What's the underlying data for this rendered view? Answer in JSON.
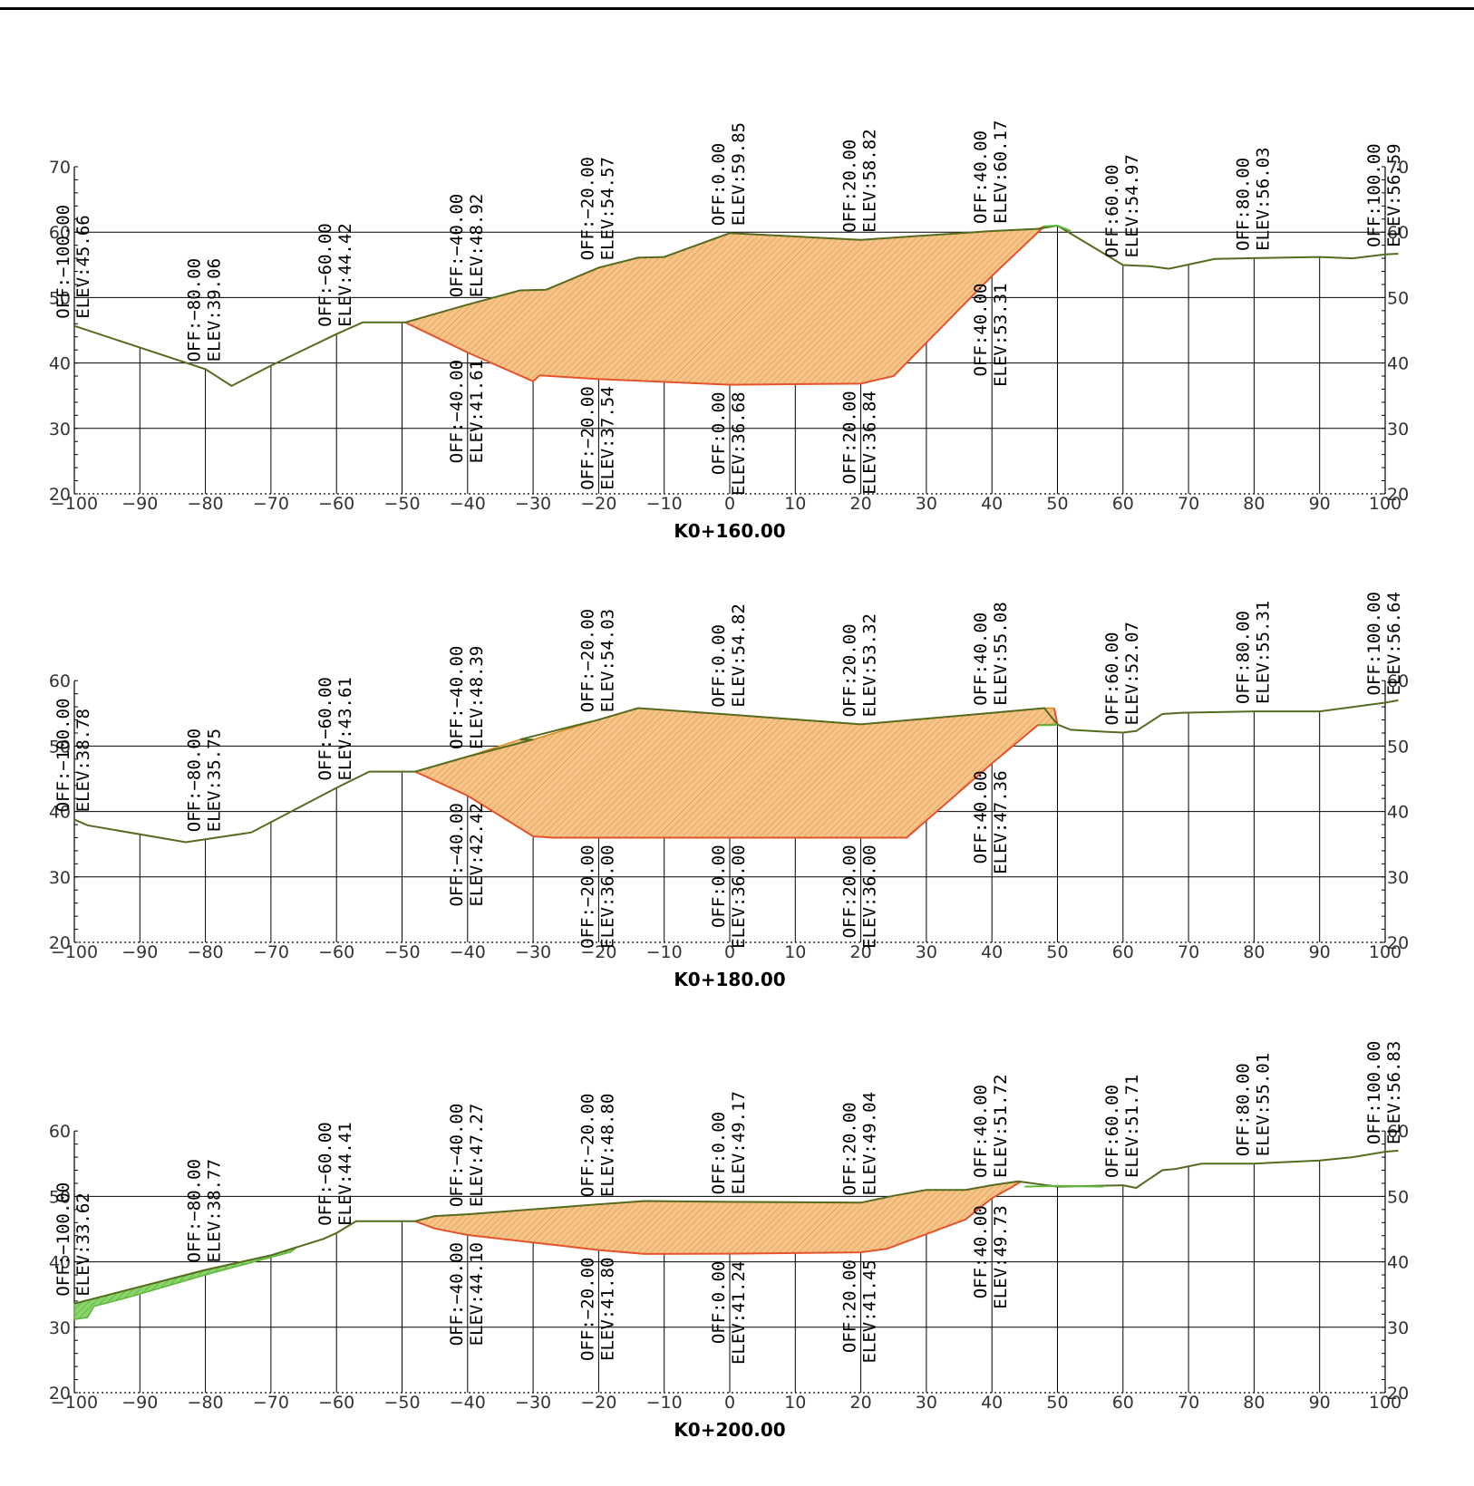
{
  "drawing": {
    "x_ticks": [
      -100,
      -90,
      -80,
      -70,
      -60,
      -50,
      -40,
      -30,
      -20,
      -10,
      0,
      10,
      20,
      30,
      40,
      50,
      60,
      70,
      80,
      90,
      100
    ],
    "colors": {
      "ground_line": "#556b1f",
      "cut_fill": "#f5c48a",
      "cut_hatch": "#e08a2a",
      "cut_outline_top": "#d98a1a",
      "cut_outline_bottom": "#e5532a",
      "fill_area": "#8ad46a",
      "fill_hatch": "#3aa532",
      "design_edge": "#5cb83a",
      "grid": "#000000"
    }
  },
  "sections": [
    {
      "station": "K0+160.00",
      "y_ticks": [
        20,
        30,
        40,
        50,
        60,
        70
      ],
      "ground": [
        [
          -100,
          45.66
        ],
        [
          -80,
          39.06
        ],
        [
          -76,
          36.5
        ],
        [
          -70,
          39.6
        ],
        [
          -60,
          44.42
        ],
        [
          -56,
          46.2
        ],
        [
          -49.5,
          46.2
        ],
        [
          -40,
          48.92
        ],
        [
          -32,
          51.1
        ],
        [
          -28,
          51.2
        ],
        [
          -20,
          54.57
        ],
        [
          -14,
          56.1
        ],
        [
          -10,
          56.2
        ],
        [
          0,
          59.85
        ],
        [
          20,
          58.82
        ],
        [
          40,
          60.17
        ],
        [
          47,
          60.5
        ],
        [
          50,
          61
        ],
        [
          60,
          54.97
        ],
        [
          64,
          54.8
        ],
        [
          67,
          54.4
        ],
        [
          74,
          55.9
        ],
        [
          80,
          56.03
        ],
        [
          90,
          56.2
        ],
        [
          95,
          56
        ],
        [
          100,
          56.59
        ],
        [
          102,
          56.7
        ]
      ],
      "design": [
        [
          -49.5,
          46.2
        ],
        [
          -40,
          41.61
        ],
        [
          -28,
          38.4
        ],
        [
          -28.5,
          38.0
        ],
        [
          -30,
          37.2
        ],
        [
          -20,
          37.54
        ],
        [
          0,
          36.68
        ],
        [
          20,
          36.84
        ],
        [
          25,
          38.0
        ],
        [
          40,
          53.31
        ],
        [
          48,
          60.9
        ],
        [
          50,
          61
        ],
        [
          52,
          60.2
        ]
      ],
      "cut_top": [
        [
          -49.5,
          46.2
        ],
        [
          -40,
          48.92
        ],
        [
          -32,
          51.1
        ],
        [
          -28,
          51.2
        ],
        [
          -20,
          54.57
        ],
        [
          -14,
          56.1
        ],
        [
          -10,
          56.2
        ],
        [
          0,
          59.85
        ],
        [
          20,
          58.82
        ],
        [
          40,
          60.17
        ],
        [
          47,
          60.5
        ],
        [
          48,
          60.9
        ]
      ],
      "cut_bottom": [
        [
          48,
          60.9
        ],
        [
          40,
          53.31
        ],
        [
          25,
          38.0
        ],
        [
          20,
          36.84
        ],
        [
          0,
          36.68
        ],
        [
          -20,
          37.54
        ],
        [
          -29,
          38.1
        ],
        [
          -30,
          37.2
        ],
        [
          -40,
          41.61
        ],
        [
          -49.5,
          46.2
        ]
      ],
      "fill_polys": [],
      "labels_upper": [
        {
          "off": "OFF:−100.00",
          "elev": "ELEV:45.66",
          "x": -100,
          "y": 45.66
        },
        {
          "off": "OFF:−80.00",
          "elev": "ELEV:39.06",
          "x": -80,
          "y": 39.06
        },
        {
          "off": "OFF:−60.00",
          "elev": "ELEV:44.42",
          "x": -60,
          "y": 44.42
        },
        {
          "off": "OFF:−40.00",
          "elev": "ELEV:48.92",
          "x": -40,
          "y": 48.92
        },
        {
          "off": "OFF:−20.00",
          "elev": "ELEV:54.57",
          "x": -20,
          "y": 54.57
        },
        {
          "off": "OFF:0.00",
          "elev": "ELEV:59.85",
          "x": 0,
          "y": 59.85
        },
        {
          "off": "OFF:20.00",
          "elev": "ELEV:58.82",
          "x": 20,
          "y": 58.82
        },
        {
          "off": "OFF:40.00",
          "elev": "ELEV:60.17",
          "x": 40,
          "y": 60.17
        },
        {
          "off": "OFF:60.00",
          "elev": "ELEV:54.97",
          "x": 60,
          "y": 54.97
        },
        {
          "off": "OFF:80.00",
          "elev": "ELEV:56.03",
          "x": 80,
          "y": 56.03
        },
        {
          "off": "OFF:100.00",
          "elev": "ELEV:56.59",
          "x": 100,
          "y": 56.59
        }
      ],
      "labels_lower": [
        {
          "off": "OFF:−40.00",
          "elev": "ELEV:41.61",
          "x": -40,
          "y": 41.61
        },
        {
          "off": "OFF:−20.00",
          "elev": "ELEV:37.54",
          "x": -20,
          "y": 37.54
        },
        {
          "off": "OFF:0.00",
          "elev": "ELEV:36.68",
          "x": 0,
          "y": 36.68
        },
        {
          "off": "OFF:20.00",
          "elev": "ELEV:36.84",
          "x": 20,
          "y": 36.84
        },
        {
          "off": "OFF:40.00",
          "elev": "ELEV:53.31",
          "x": 40,
          "y": 53.31
        }
      ]
    },
    {
      "station": "K0+180.00",
      "y_ticks": [
        20,
        30,
        40,
        50,
        60
      ],
      "ground": [
        [
          -100,
          38.78
        ],
        [
          -98,
          37.9
        ],
        [
          -83,
          35.3
        ],
        [
          -80,
          35.75
        ],
        [
          -73,
          36.8
        ],
        [
          -60,
          43.61
        ],
        [
          -55,
          46.1
        ],
        [
          -48,
          46.1
        ],
        [
          -40,
          48.39
        ],
        [
          -30,
          51.0
        ],
        [
          -32,
          51.0
        ],
        [
          -20,
          54.03
        ],
        [
          -14,
          55.8
        ],
        [
          0,
          54.82
        ],
        [
          20,
          53.32
        ],
        [
          40,
          55.08
        ],
        [
          48,
          55.8
        ],
        [
          50,
          53.3
        ],
        [
          52,
          52.5
        ],
        [
          57,
          52.2
        ],
        [
          60,
          52.07
        ],
        [
          62,
          52.3
        ],
        [
          66,
          54.9
        ],
        [
          69,
          55.1
        ],
        [
          80,
          55.31
        ],
        [
          90,
          55.3
        ],
        [
          100,
          56.64
        ],
        [
          102,
          57.0
        ]
      ],
      "design": [
        [
          -48,
          46.1
        ],
        [
          -40,
          42.42
        ],
        [
          -30,
          36.2
        ],
        [
          -27,
          36.0
        ],
        [
          -20,
          36.0
        ],
        [
          0,
          36.0
        ],
        [
          20,
          36.0
        ],
        [
          27,
          36.0
        ],
        [
          40,
          47.36
        ],
        [
          47,
          53.2
        ],
        [
          49,
          53.2
        ],
        [
          50,
          53.3
        ]
      ],
      "cut_top": [
        [
          -48,
          46.1
        ],
        [
          -40,
          48.39
        ],
        [
          -32,
          51.0
        ],
        [
          -30,
          51.0
        ],
        [
          -20,
          54.03
        ],
        [
          -14,
          55.8
        ],
        [
          0,
          54.82
        ],
        [
          20,
          53.32
        ],
        [
          40,
          55.08
        ],
        [
          48,
          55.8
        ],
        [
          49.5,
          55.8
        ]
      ],
      "cut_bottom": [
        [
          49.5,
          55.8
        ],
        [
          50,
          53.3
        ],
        [
          47,
          53.2
        ],
        [
          40,
          47.36
        ],
        [
          27,
          36.0
        ],
        [
          20,
          36.0
        ],
        [
          0,
          36.0
        ],
        [
          -20,
          36.0
        ],
        [
          -27,
          36.0
        ],
        [
          -30,
          36.2
        ],
        [
          -40,
          42.42
        ],
        [
          -48,
          46.1
        ]
      ],
      "fill_polys": [],
      "labels_upper": [
        {
          "off": "OFF:−100.00",
          "elev": "ELEV:38.78",
          "x": -100,
          "y": 38.78
        },
        {
          "off": "OFF:−80.00",
          "elev": "ELEV:35.75",
          "x": -80,
          "y": 35.75
        },
        {
          "off": "OFF:−60.00",
          "elev": "ELEV:43.61",
          "x": -60,
          "y": 43.61
        },
        {
          "off": "OFF:−40.00",
          "elev": "ELEV:48.39",
          "x": -40,
          "y": 48.39
        },
        {
          "off": "OFF:−20.00",
          "elev": "ELEV:54.03",
          "x": -20,
          "y": 54.03
        },
        {
          "off": "OFF:0.00",
          "elev": "ELEV:54.82",
          "x": 0,
          "y": 54.82
        },
        {
          "off": "OFF:20.00",
          "elev": "ELEV:53.32",
          "x": 20,
          "y": 53.32
        },
        {
          "off": "OFF:40.00",
          "elev": "ELEV:55.08",
          "x": 40,
          "y": 55.08
        },
        {
          "off": "OFF:60.00",
          "elev": "ELEV:52.07",
          "x": 60,
          "y": 52.07
        },
        {
          "off": "OFF:80.00",
          "elev": "ELEV:55.31",
          "x": 80,
          "y": 55.31
        },
        {
          "off": "OFF:100.00",
          "elev": "ELEV:56.64",
          "x": 100,
          "y": 56.64
        }
      ],
      "labels_lower": [
        {
          "off": "OFF:−40.00",
          "elev": "ELEV:42.42",
          "x": -40,
          "y": 42.42
        },
        {
          "off": "OFF:−20.00",
          "elev": "ELEV:36.00",
          "x": -20,
          "y": 36.0
        },
        {
          "off": "OFF:0.00",
          "elev": "ELEV:36.00",
          "x": 0,
          "y": 36.0
        },
        {
          "off": "OFF:20.00",
          "elev": "ELEV:36.00",
          "x": 20,
          "y": 36.0
        },
        {
          "off": "OFF:40.00",
          "elev": "ELEV:47.36",
          "x": 40,
          "y": 47.36
        }
      ]
    },
    {
      "station": "K0+200.00",
      "y_ticks": [
        20,
        30,
        40,
        50,
        60
      ],
      "ground": [
        [
          -100,
          33.62
        ],
        [
          -80,
          38.77
        ],
        [
          -70,
          41.0
        ],
        [
          -62,
          43.5
        ],
        [
          -60,
          44.41
        ],
        [
          -57,
          46.2
        ],
        [
          -48,
          46.2
        ],
        [
          -45,
          47.0
        ],
        [
          -40,
          47.27
        ],
        [
          -20,
          48.8
        ],
        [
          -13,
          49.3
        ],
        [
          0,
          49.17
        ],
        [
          20,
          49.04
        ],
        [
          25,
          50.1
        ],
        [
          30,
          51.0
        ],
        [
          36,
          51.0
        ],
        [
          40,
          51.72
        ],
        [
          44,
          52.3
        ],
        [
          50,
          51.5
        ],
        [
          60,
          51.71
        ],
        [
          62,
          51.3
        ],
        [
          66,
          54.0
        ],
        [
          68,
          54.2
        ],
        [
          72,
          55.0
        ],
        [
          80,
          55.01
        ],
        [
          90,
          55.5
        ],
        [
          95,
          56.0
        ],
        [
          100,
          56.83
        ],
        [
          102,
          57.0
        ]
      ],
      "design": [
        [
          -48,
          46.2
        ],
        [
          -45,
          45.1
        ],
        [
          -40,
          44.1
        ],
        [
          -20,
          41.8
        ],
        [
          -13,
          41.2
        ],
        [
          0,
          41.24
        ],
        [
          20,
          41.45
        ],
        [
          24,
          42.0
        ],
        [
          36,
          46.5
        ],
        [
          40,
          49.73
        ],
        [
          43,
          51.4
        ],
        [
          45,
          51.5
        ],
        [
          50,
          51.6
        ],
        [
          57,
          51.5
        ]
      ],
      "cut_top": [
        [
          -48,
          46.2
        ],
        [
          -45,
          47.0
        ],
        [
          -40,
          47.27
        ],
        [
          -20,
          48.8
        ],
        [
          -13,
          49.3
        ],
        [
          0,
          49.17
        ],
        [
          20,
          49.04
        ],
        [
          25,
          50.1
        ],
        [
          30,
          51.0
        ],
        [
          36,
          51.0
        ],
        [
          40,
          51.72
        ],
        [
          44.5,
          52.3
        ]
      ],
      "cut_bottom": [
        [
          44.5,
          52.3
        ],
        [
          43,
          51.4
        ],
        [
          40,
          49.73
        ],
        [
          36,
          46.5
        ],
        [
          24,
          42.0
        ],
        [
          20,
          41.45
        ],
        [
          0,
          41.24
        ],
        [
          -13,
          41.2
        ],
        [
          -20,
          41.8
        ],
        [
          -40,
          44.1
        ],
        [
          -45,
          45.1
        ],
        [
          -48,
          46.2
        ]
      ],
      "fill_polys": [
        [
          [
            -100,
            33.62
          ],
          [
            -80,
            38.77
          ],
          [
            -70,
            41.0
          ],
          [
            -66,
            42.3
          ],
          [
            -67,
            41.5
          ],
          [
            -80,
            38.0
          ],
          [
            -92,
            34.5
          ],
          [
            -97,
            33.2
          ],
          [
            -98,
            31.5
          ],
          [
            -100,
            31.2
          ]
        ]
      ],
      "labels_upper": [
        {
          "off": "OFF:−100.00",
          "elev": "ELEV:33.62",
          "x": -100,
          "y": 33.62
        },
        {
          "off": "OFF:−80.00",
          "elev": "ELEV:38.77",
          "x": -80,
          "y": 38.77
        },
        {
          "off": "OFF:−60.00",
          "elev": "ELEV:44.41",
          "x": -60,
          "y": 44.41
        },
        {
          "off": "OFF:−40.00",
          "elev": "ELEV:47.27",
          "x": -40,
          "y": 47.27
        },
        {
          "off": "OFF:−20.00",
          "elev": "ELEV:48.80",
          "x": -20,
          "y": 48.8
        },
        {
          "off": "OFF:0.00",
          "elev": "ELEV:49.17",
          "x": 0,
          "y": 49.17
        },
        {
          "off": "OFF:20.00",
          "elev": "ELEV:49.04",
          "x": 20,
          "y": 49.04
        },
        {
          "off": "OFF:40.00",
          "elev": "ELEV:51.72",
          "x": 40,
          "y": 51.72
        },
        {
          "off": "OFF:60.00",
          "elev": "ELEV:51.71",
          "x": 60,
          "y": 51.71
        },
        {
          "off": "OFF:80.00",
          "elev": "ELEV:55.01",
          "x": 80,
          "y": 55.01
        },
        {
          "off": "OFF:100.00",
          "elev": "ELEV:56.83",
          "x": 100,
          "y": 56.83
        }
      ],
      "labels_lower": [
        {
          "off": "OFF:−40.00",
          "elev": "ELEV:44.10",
          "x": -40,
          "y": 44.1
        },
        {
          "off": "OFF:−20.00",
          "elev": "ELEV:41.80",
          "x": -20,
          "y": 41.8
        },
        {
          "off": "OFF:0.00",
          "elev": "ELEV:41.24",
          "x": 0,
          "y": 41.24
        },
        {
          "off": "OFF:20.00",
          "elev": "ELEV:41.45",
          "x": 20,
          "y": 41.45
        },
        {
          "off": "OFF:40.00",
          "elev": "ELEV:49.73",
          "x": 40,
          "y": 49.73
        }
      ]
    }
  ]
}
